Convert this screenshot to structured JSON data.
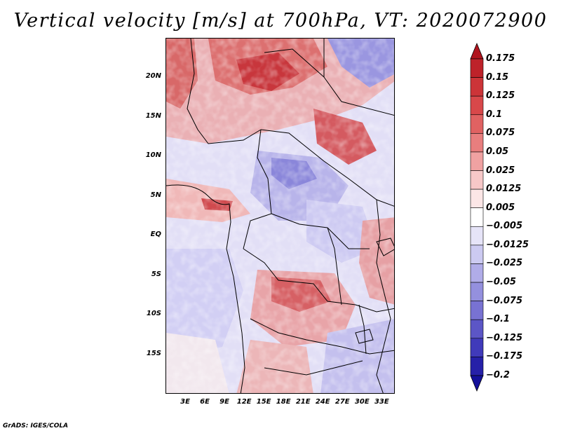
{
  "title": "Vertical velocity [m/s] at 700hPa, VT: 2020072900",
  "footer": "GrADS: IGES/COLA",
  "map": {
    "region": "Central Africa",
    "projection": "latlon",
    "lon_range": [
      0,
      35
    ],
    "lat_range": [
      -20,
      25
    ],
    "lat_ticks": [
      {
        "lat": 20,
        "label": "20N"
      },
      {
        "lat": 15,
        "label": "15N"
      },
      {
        "lat": 10,
        "label": "10N"
      },
      {
        "lat": 5,
        "label": "5N"
      },
      {
        "lat": 0,
        "label": "EQ"
      },
      {
        "lat": -5,
        "label": "5S"
      },
      {
        "lat": -10,
        "label": "10S"
      },
      {
        "lat": -15,
        "label": "15S"
      }
    ],
    "lon_ticks": [
      {
        "lon": 3,
        "label": "3E"
      },
      {
        "lon": 6,
        "label": "6E"
      },
      {
        "lon": 9,
        "label": "9E"
      },
      {
        "lon": 12,
        "label": "12E"
      },
      {
        "lon": 15,
        "label": "15E"
      },
      {
        "lon": 18,
        "label": "18E"
      },
      {
        "lon": 21,
        "label": "21E"
      },
      {
        "lon": 24,
        "label": "24E"
      },
      {
        "lon": 27,
        "label": "27E"
      },
      {
        "lon": 30,
        "label": "30E"
      },
      {
        "lon": 33,
        "label": "33E"
      }
    ]
  },
  "colorbar": {
    "labels": [
      "0.175",
      "0.15",
      "0.125",
      "0.1",
      "0.075",
      "0.05",
      "0.025",
      "0.0125",
      "0.005",
      "−0.005",
      "−0.0125",
      "−0.025",
      "−0.05",
      "−0.075",
      "−0.1",
      "−0.125",
      "−0.175",
      "−0.2"
    ],
    "colors": [
      "#b0141e",
      "#be222a",
      "#cc3438",
      "#d8484a",
      "#e06262",
      "#e87e7e",
      "#f0a2a2",
      "#f7c8c8",
      "#fce6e6",
      "#ffffff",
      "#e6e4f8",
      "#cccaf1",
      "#b0ace8",
      "#9490de",
      "#7872d2",
      "#5c56c6",
      "#403aba",
      "#2620a8",
      "#14109a"
    ]
  }
}
